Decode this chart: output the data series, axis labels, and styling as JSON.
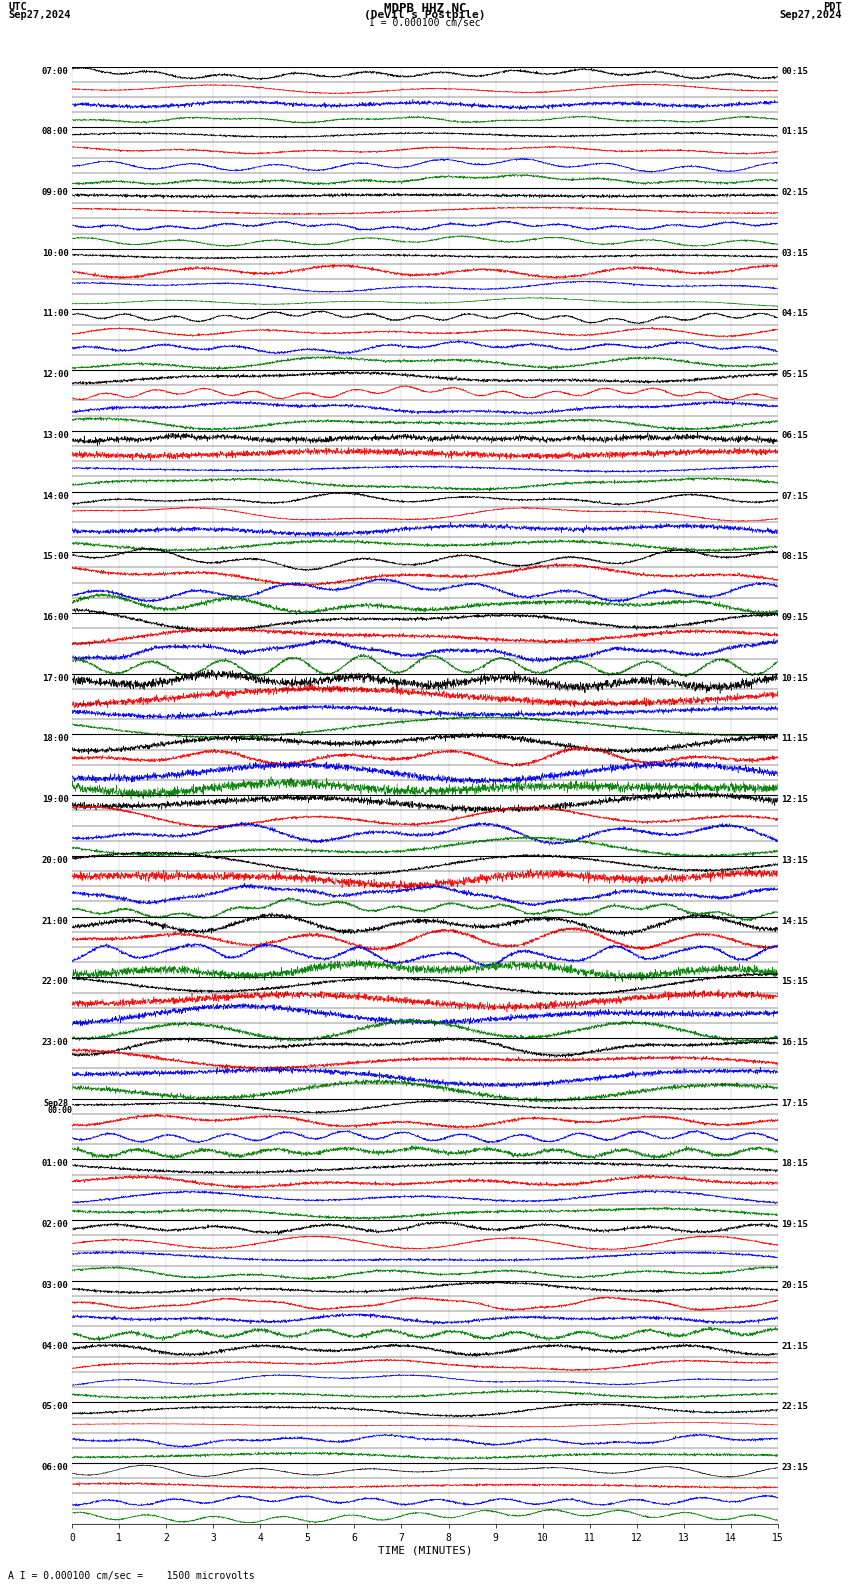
{
  "title_line1": "MDPB HHZ NC",
  "title_line2": "(Devil's Postpile)",
  "scale_text": "I = 0.000100 cm/sec",
  "bottom_text": "A I = 0.000100 cm/sec =    1500 microvolts",
  "utc_label": "UTC",
  "pdt_label": "PDT",
  "date_left": "Sep27,2024",
  "date_right": "Sep27,2024",
  "colors_cycle": [
    "black",
    "red",
    "blue",
    "green"
  ],
  "xlabel": "TIME (MINUTES)",
  "xlim": [
    0,
    15
  ],
  "xticks": [
    0,
    1,
    2,
    3,
    4,
    5,
    6,
    7,
    8,
    9,
    10,
    11,
    12,
    13,
    14,
    15
  ],
  "num_hour_blocks": 24,
  "subrows_per_block": 4,
  "left_time_labels": [
    "07:00",
    "08:00",
    "09:00",
    "10:00",
    "11:00",
    "12:00",
    "13:00",
    "14:00",
    "15:00",
    "16:00",
    "17:00",
    "18:00",
    "19:00",
    "20:00",
    "21:00",
    "22:00",
    "23:00",
    "Sep28\n00:00",
    "01:00",
    "02:00",
    "03:00",
    "04:00",
    "05:00",
    "06:00"
  ],
  "right_time_labels": [
    "00:15",
    "01:15",
    "02:15",
    "03:15",
    "04:15",
    "05:15",
    "06:15",
    "07:15",
    "08:15",
    "09:15",
    "10:15",
    "11:15",
    "12:15",
    "13:15",
    "14:15",
    "15:15",
    "16:15",
    "17:15",
    "18:15",
    "19:15",
    "20:15",
    "21:15",
    "22:15",
    "23:15"
  ]
}
